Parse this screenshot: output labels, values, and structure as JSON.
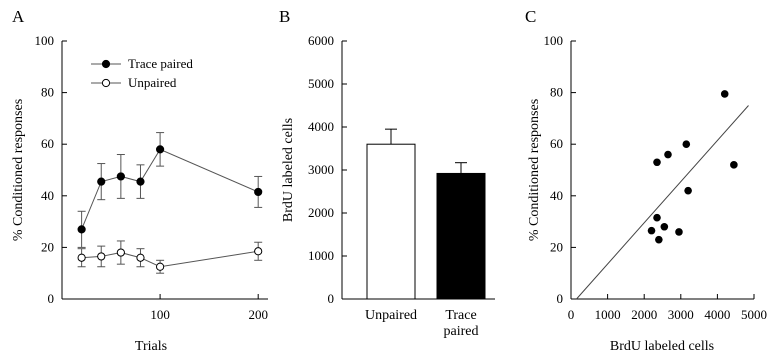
{
  "chart_data": [
    {
      "panel": "A",
      "type": "line",
      "xlabel": "Trials",
      "ylabel": "% Conditioned responses",
      "xlim": [
        0,
        210
      ],
      "ylim": [
        0,
        100
      ],
      "xticks": [
        100,
        200
      ],
      "yticks": [
        0,
        20,
        40,
        60,
        80,
        100
      ],
      "legend_position": "top-left",
      "series": [
        {
          "name": "Trace paired",
          "marker": "filled-circle",
          "x": [
            20,
            40,
            60,
            80,
            100,
            200
          ],
          "y": [
            27,
            45.5,
            47.5,
            45.5,
            58,
            41.5
          ],
          "error": [
            7,
            7,
            8.5,
            6.5,
            6.5,
            6
          ]
        },
        {
          "name": "Unpaired",
          "marker": "open-circle",
          "x": [
            20,
            40,
            60,
            80,
            100,
            200
          ],
          "y": [
            16,
            16.5,
            18,
            16,
            12.5,
            18.5
          ],
          "error": [
            3.5,
            4,
            4.5,
            3.5,
            2.5,
            3.5
          ]
        }
      ]
    },
    {
      "panel": "B",
      "type": "bar",
      "ylabel": "BrdU labeled cells",
      "ylim": [
        0,
        6000
      ],
      "yticks": [
        0,
        1000,
        2000,
        3000,
        4000,
        5000,
        6000
      ],
      "categories": [
        [
          "Unpaired"
        ],
        [
          "Trace",
          "paired"
        ]
      ],
      "values": [
        3600,
        2920
      ],
      "error": [
        350,
        250
      ],
      "bar_fills": [
        "#ffffff",
        "#000000"
      ]
    },
    {
      "panel": "C",
      "type": "scatter",
      "xlabel": "BrdU labeled cells",
      "ylabel": "% Conditioned responses",
      "xlim": [
        0,
        5000
      ],
      "ylim": [
        0,
        100
      ],
      "xticks": [
        0,
        1000,
        2000,
        3000,
        4000,
        5000
      ],
      "yticks": [
        0,
        20,
        40,
        60,
        80,
        100
      ],
      "points": [
        {
          "x": 4200,
          "y": 79.5
        },
        {
          "x": 3150,
          "y": 60
        },
        {
          "x": 2650,
          "y": 56
        },
        {
          "x": 2350,
          "y": 53
        },
        {
          "x": 4450,
          "y": 52
        },
        {
          "x": 3200,
          "y": 42
        },
        {
          "x": 2350,
          "y": 31.5
        },
        {
          "x": 2550,
          "y": 28
        },
        {
          "x": 2200,
          "y": 26.5
        },
        {
          "x": 2950,
          "y": 26
        },
        {
          "x": 2400,
          "y": 23
        }
      ],
      "fit_line": {
        "x": [
          150,
          4850
        ],
        "y": [
          0,
          75
        ]
      }
    }
  ]
}
